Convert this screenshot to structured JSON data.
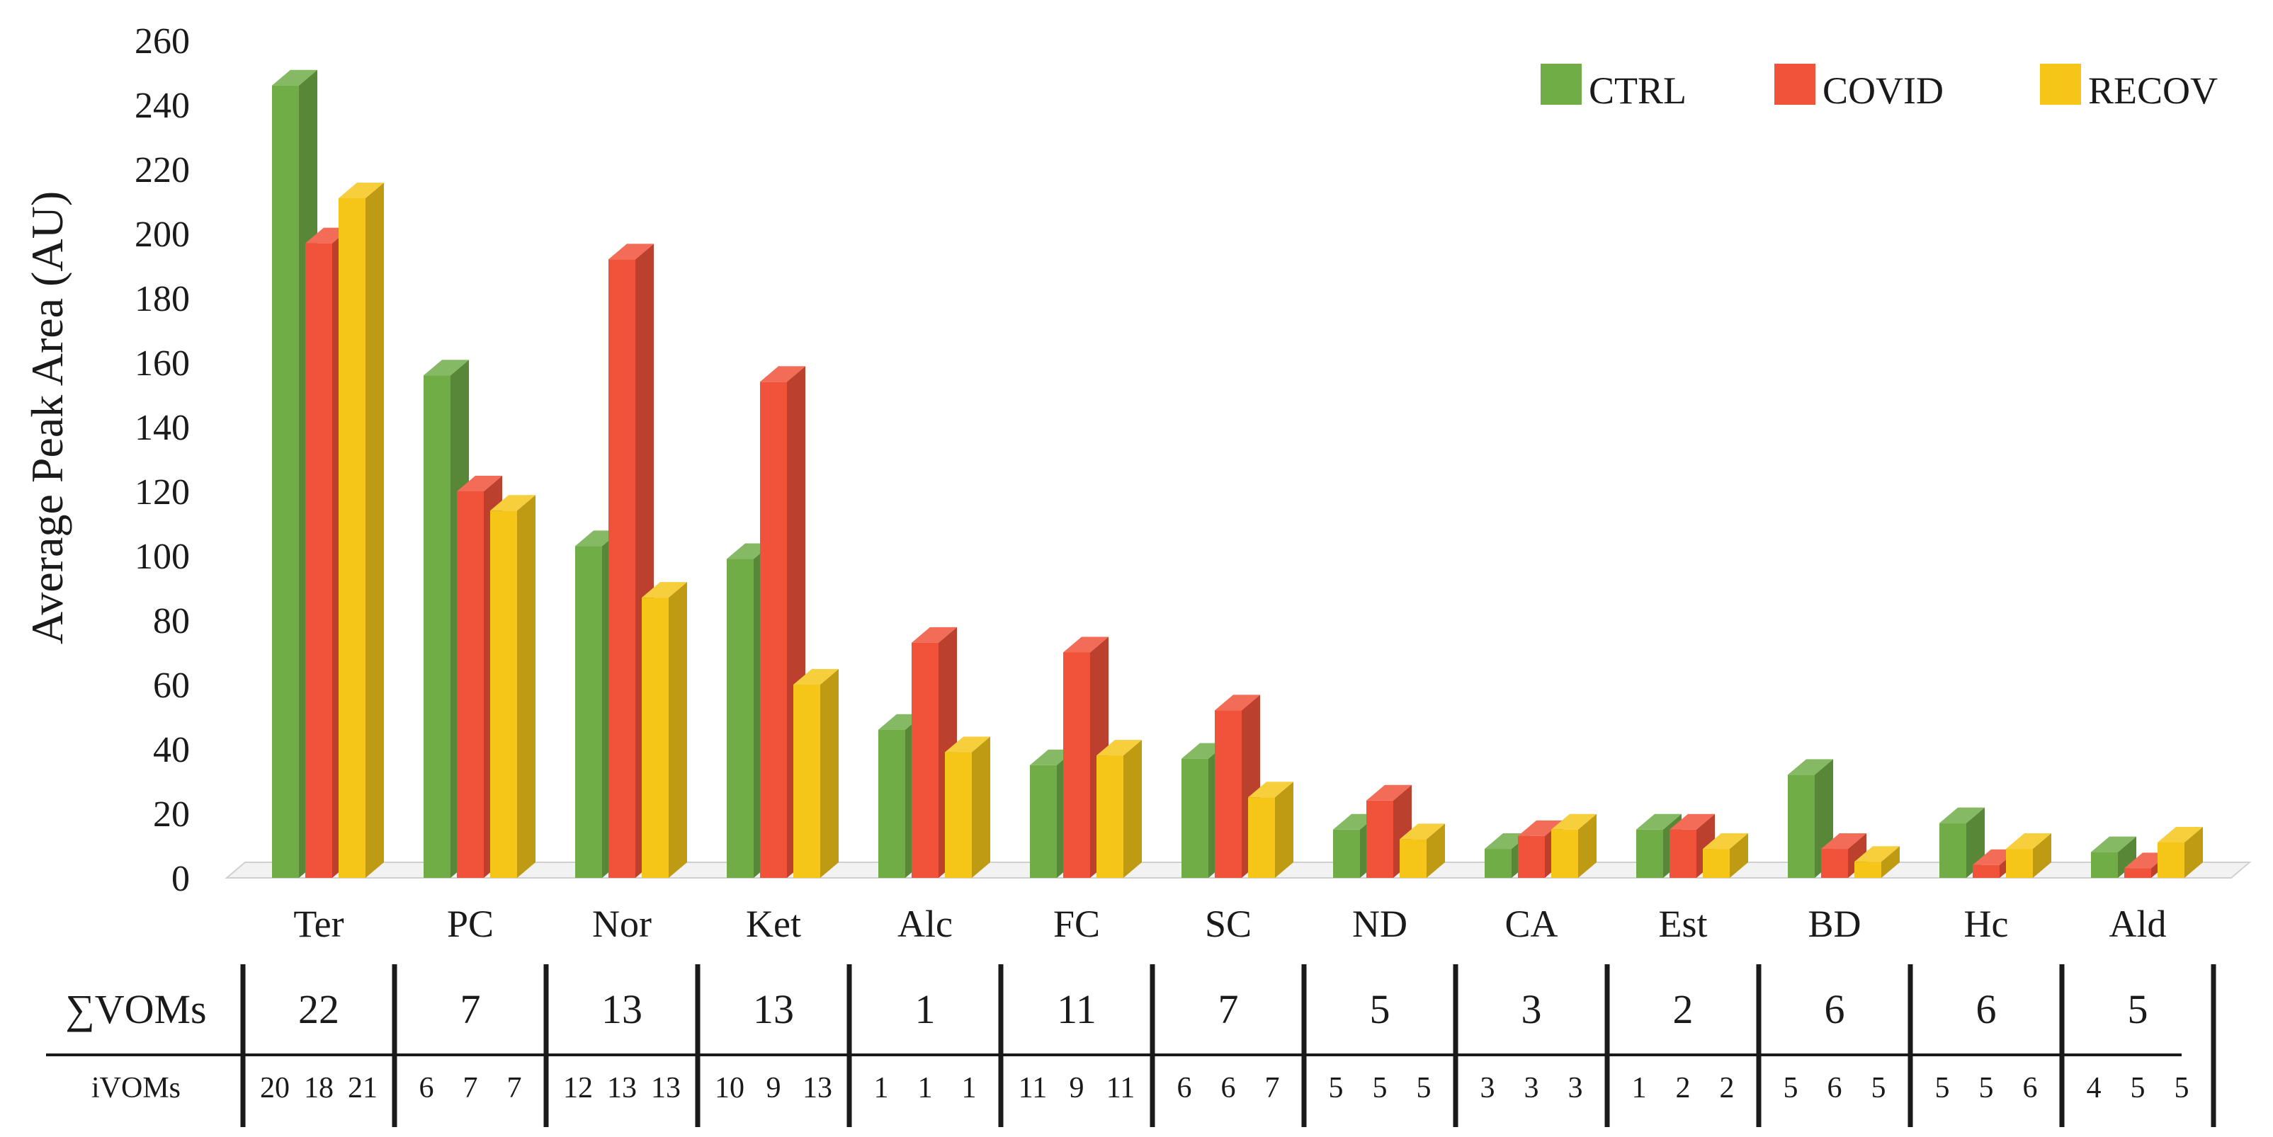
{
  "chart_data": {
    "type": "bar",
    "ylabel": "Average Peak Area (AU)",
    "ylim": [
      0,
      260
    ],
    "yticks": [
      0,
      20,
      40,
      60,
      80,
      100,
      120,
      140,
      160,
      180,
      200,
      220,
      240,
      260
    ],
    "categories": [
      "Ter",
      "PC",
      "Nor",
      "Ket",
      "Alc",
      "FC",
      "SC",
      "ND",
      "CA",
      "Est",
      "BD",
      "Hc",
      "Ald"
    ],
    "series": [
      {
        "name": "CTRL",
        "color": "#70ad47",
        "values": [
          246,
          156,
          103,
          99,
          46,
          35,
          37,
          15,
          9,
          15,
          32,
          17,
          8
        ]
      },
      {
        "name": "COVID",
        "color": "#f0523a",
        "values": [
          197,
          120,
          192,
          154,
          73,
          70,
          52,
          24,
          13,
          15,
          9,
          4,
          3
        ]
      },
      {
        "name": "RECOV",
        "color": "#f5c518",
        "values": [
          211,
          114,
          87,
          60,
          39,
          38,
          25,
          12,
          15,
          9,
          5,
          9,
          11
        ]
      }
    ],
    "legend": {
      "position": "top-right"
    },
    "grid": false,
    "table": {
      "sum_label": "∑VOMs",
      "sum_values": [
        "22",
        "7",
        "13",
        "13",
        "1",
        "11",
        "7",
        "5",
        "3",
        "2",
        "6",
        "6",
        "5"
      ],
      "i_label": "iVOMs",
      "i_values": [
        [
          "20",
          "18",
          "21"
        ],
        [
          "6",
          "7",
          "7"
        ],
        [
          "12",
          "13",
          "13"
        ],
        [
          "10",
          "9",
          "13"
        ],
        [
          "1",
          "1",
          "1"
        ],
        [
          "11",
          "9",
          "11"
        ],
        [
          "6",
          "6",
          "7"
        ],
        [
          "5",
          "5",
          "5"
        ],
        [
          "3",
          "3",
          "3"
        ],
        [
          "1",
          "2",
          "2"
        ],
        [
          "5",
          "6",
          "5"
        ],
        [
          "5",
          "5",
          "6"
        ],
        [
          "4",
          "5",
          "5"
        ]
      ]
    }
  }
}
